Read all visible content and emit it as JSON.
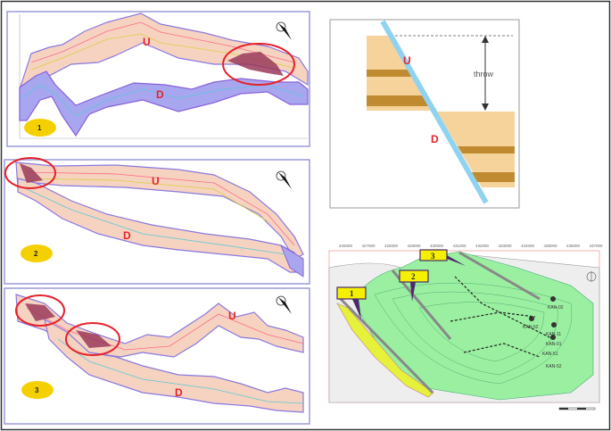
{
  "colors": {
    "up_band": "#f6d3c0",
    "down_band": "#a9a6f0",
    "highlight": "#e8202a",
    "badge": "#f5d000",
    "map_green": "#9af0a0",
    "map_yellow": "#e6f23a",
    "fault_blue": "#8fd3f0",
    "sand": "#f6d39a",
    "shale": "#c08a30"
  },
  "panels": [
    {
      "badge": "1",
      "up_label": "U",
      "down_label": "D"
    },
    {
      "badge": "2",
      "up_label": "U",
      "down_label": "D"
    },
    {
      "badge": "3",
      "up_label": "U",
      "down_label": "D"
    }
  ],
  "fault_diagram": {
    "up_label": "U",
    "down_label": "D",
    "throw_label": "throw"
  },
  "map": {
    "callouts": [
      "1",
      "2",
      "3"
    ],
    "x_ticks": [
      "426000",
      "427000",
      "428000",
      "429000",
      "430000",
      "431000",
      "432000",
      "433000",
      "434000",
      "435000",
      "436000",
      "437000"
    ],
    "wells": [
      "KAN-02",
      "KAN-52",
      "KAN-11",
      "KAN-01",
      "KAN-51",
      "KAN-52"
    ]
  }
}
